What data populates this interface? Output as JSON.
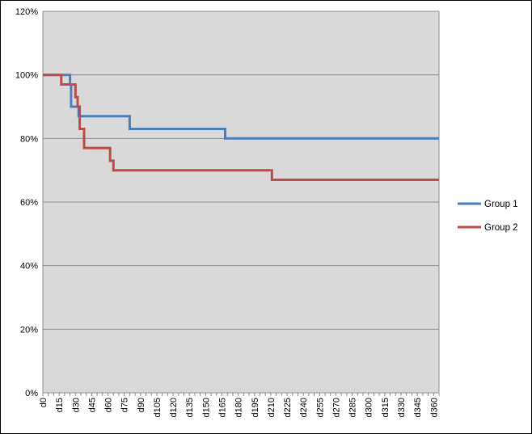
{
  "chart_data": {
    "type": "line",
    "title": "",
    "xlabel": "",
    "ylabel": "",
    "ylim": [
      0,
      120
    ],
    "y_ticks": [
      "0%",
      "20%",
      "40%",
      "60%",
      "80%",
      "100%",
      "120%"
    ],
    "y_tick_values": [
      0,
      20,
      40,
      60,
      80,
      100,
      120
    ],
    "x_range": [
      0,
      365
    ],
    "x_ticks": [
      "d0",
      "d15",
      "d30",
      "d45",
      "d60",
      "d75",
      "d90",
      "d105",
      "d120",
      "d135",
      "d150",
      "d165",
      "d180",
      "d195",
      "d210",
      "d225",
      "d240",
      "d255",
      "d270",
      "d285",
      "d300",
      "d315",
      "d330",
      "d345",
      "d360"
    ],
    "x_tick_values": [
      0,
      15,
      30,
      45,
      60,
      75,
      90,
      105,
      120,
      135,
      150,
      165,
      180,
      195,
      210,
      225,
      240,
      255,
      270,
      285,
      300,
      315,
      330,
      345,
      360
    ],
    "grid": "horizontal",
    "legend_position": "right",
    "series": [
      {
        "name": "Group 1",
        "color": "#4a7ebb",
        "step_points": [
          [
            0,
            100
          ],
          [
            25,
            100
          ],
          [
            25,
            97
          ],
          [
            26,
            97
          ],
          [
            26,
            90
          ],
          [
            33,
            90
          ],
          [
            33,
            87
          ],
          [
            80,
            87
          ],
          [
            80,
            83
          ],
          [
            168,
            83
          ],
          [
            168,
            80
          ],
          [
            365,
            80
          ]
        ]
      },
      {
        "name": "Group 2",
        "color": "#be4b48",
        "step_points": [
          [
            0,
            100
          ],
          [
            17,
            100
          ],
          [
            17,
            97
          ],
          [
            30,
            97
          ],
          [
            30,
            93
          ],
          [
            32,
            93
          ],
          [
            32,
            90
          ],
          [
            34,
            90
          ],
          [
            34,
            83
          ],
          [
            38,
            83
          ],
          [
            38,
            77
          ],
          [
            62,
            77
          ],
          [
            62,
            73
          ],
          [
            65,
            73
          ],
          [
            65,
            70
          ],
          [
            211,
            70
          ],
          [
            211,
            67
          ],
          [
            365,
            67
          ]
        ]
      }
    ]
  }
}
